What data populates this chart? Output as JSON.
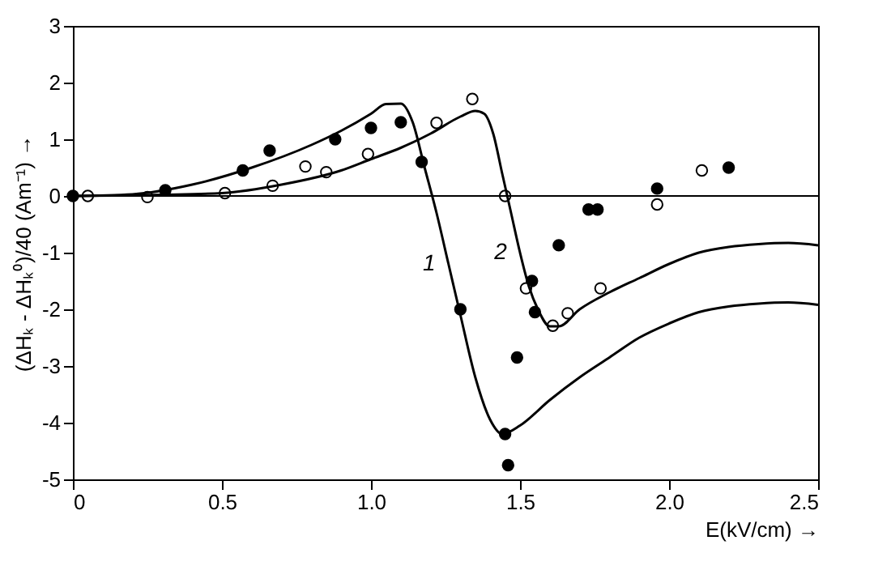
{
  "chart_data": {
    "type": "scatter",
    "xlabel": "E(kV/cm) →",
    "ylabel": "(ΔHₖ - ΔHₖ⁰)/40 (Am⁻¹) →",
    "xlim": [
      0,
      2.5
    ],
    "xticks": [
      0,
      0.5,
      {
        "value": 1,
        "label": "1.0"
      },
      1.5,
      {
        "value": 2,
        "label": "2.0"
      },
      2.5
    ],
    "ylim": [
      -5,
      3
    ],
    "yticks": [
      -5,
      -4,
      -3,
      -2,
      -1,
      0,
      1,
      2,
      3
    ],
    "grid": false,
    "marker": "circle",
    "ref_lines": [
      {
        "axis": "y",
        "value": 0,
        "color": "#000000"
      }
    ],
    "annotations": [
      {
        "text": "1",
        "x": 1.26,
        "y": -1.2
      },
      {
        "text": "2",
        "x": 1.5,
        "y": -1.0
      }
    ],
    "series": [
      {
        "color": "#000000",
        "x": [
          0,
          0.31,
          0.57,
          0.66,
          0.88,
          1.0,
          1.1,
          1.17,
          1.3,
          1.45,
          1.46,
          1.49,
          1.54,
          1.55,
          1.63,
          1.73,
          1.76,
          1.96,
          2.2
        ],
        "values": [
          0,
          0.1,
          0.45,
          0.8,
          1.0,
          1.2,
          1.3,
          0.6,
          -2.0,
          -4.2,
          -4.75,
          -2.85,
          -1.5,
          -2.05,
          -0.87,
          -0.24,
          -0.24,
          0.13,
          0.5
        ]
      },
      {
        "color": "#ffffff",
        "x": [
          0.05,
          0.25,
          0.51,
          0.67,
          0.78,
          0.85,
          0.99,
          1.22,
          1.34,
          1.45,
          1.52,
          1.61,
          1.66,
          1.77,
          1.96,
          2.11
        ],
        "values": [
          0,
          -0.02,
          0.05,
          0.18,
          0.52,
          0.42,
          0.74,
          1.29,
          1.71,
          0,
          -1.63,
          -2.29,
          -2.07,
          -1.63,
          -0.15,
          0.45
        ]
      },
      {
        "type": "line",
        "color": "#000000",
        "marker": "none",
        "x": [
          0,
          0.2,
          0.4,
          0.6,
          0.8,
          0.9,
          1.0,
          1.05,
          1.1,
          1.14,
          1.18,
          1.22,
          1.26,
          1.3,
          1.35,
          1.4,
          1.44,
          1.5,
          1.6,
          1.7,
          1.8,
          1.9,
          2.0,
          2.1,
          2.2,
          2.3,
          2.4,
          2.5
        ],
        "values": [
          0,
          0.03,
          0.2,
          0.5,
          0.9,
          1.15,
          1.45,
          1.62,
          1.63,
          1.3,
          0.5,
          -0.3,
          -1.2,
          -2.1,
          -3.2,
          -3.95,
          -4.2,
          -4.05,
          -3.6,
          -3.2,
          -2.85,
          -2.5,
          -2.25,
          -2.05,
          -1.95,
          -1.9,
          -1.88,
          -1.92
        ]
      },
      {
        "type": "line",
        "color": "#000000",
        "marker": "none",
        "x": [
          0,
          0.3,
          0.5,
          0.7,
          0.9,
          1.0,
          1.1,
          1.2,
          1.3,
          1.35,
          1.38,
          1.41,
          1.44,
          1.47,
          1.5,
          1.53,
          1.56,
          1.6,
          1.63,
          1.7,
          1.8,
          1.9,
          2.0,
          2.1,
          2.2,
          2.3,
          2.4,
          2.5
        ],
        "values": [
          0,
          0.02,
          0.05,
          0.2,
          0.45,
          0.65,
          0.85,
          1.1,
          1.4,
          1.5,
          1.45,
          1.1,
          0.4,
          -0.3,
          -1.0,
          -1.6,
          -2.0,
          -2.3,
          -2.3,
          -2.0,
          -1.7,
          -1.45,
          -1.2,
          -1.0,
          -0.9,
          -0.85,
          -0.83,
          -0.87
        ]
      }
    ]
  }
}
